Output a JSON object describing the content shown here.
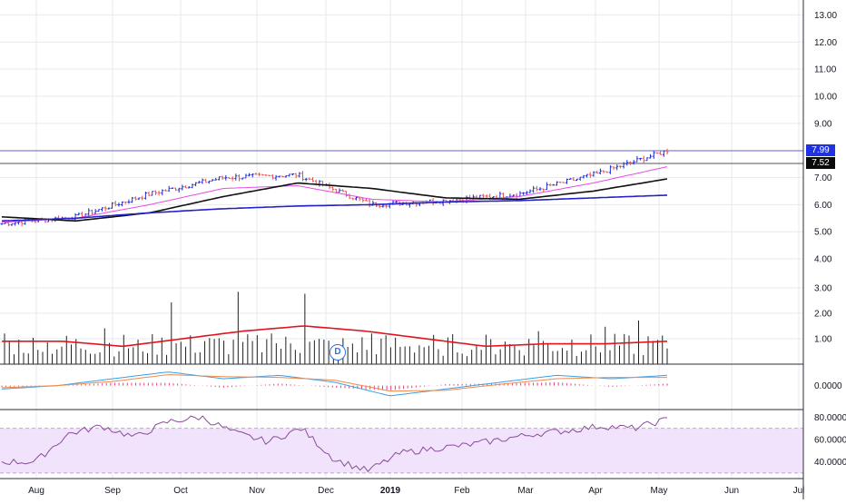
{
  "colors": {
    "background": "#ffffff",
    "grid": "#e6e9ee",
    "axis": "#131722",
    "bar_up": "#1e2bd6",
    "bar_down": "#e25555",
    "ma_fast": "#e64ce6",
    "ma_mid": "#111111",
    "ma_slow": "#2222c8",
    "volume_bar": "#1f1f1f",
    "volume_ma": "#e0141e",
    "macd_line": "#3aa0e6",
    "signal_line": "#f08a4b",
    "macd_hist": "#e8407a",
    "rsi_line": "#8b4b9b",
    "rsi_band": "#f0e3fb",
    "hline_upper": "#6b6bd6",
    "hline_lower": "#555555",
    "last_price_bg": "#1f31e0",
    "level_bg": "#0b0b0b"
  },
  "price_axis": {
    "ticks": [
      "13.00",
      "12.00",
      "11.00",
      "10.00",
      "9.00",
      "8.00",
      "7.00",
      "6.00",
      "5.00",
      "4.00"
    ]
  },
  "volume_axis": {
    "ticks": [
      "3.00",
      "2.00",
      "1.00"
    ]
  },
  "macd_axis": {
    "ticks": [
      "0.0000"
    ]
  },
  "rsi_axis": {
    "ticks": [
      "80.0000",
      "60.0000",
      "40.0000"
    ]
  },
  "time_axis": {
    "labels": [
      "Aug",
      "Sep",
      "Oct",
      "Nov",
      "Dec",
      "2019",
      "Feb",
      "Mar",
      "Apr",
      "May",
      "Jun",
      "Jul"
    ],
    "bold_label": "2019"
  },
  "badges": {
    "last_price": "7.99",
    "level": "7.52",
    "dividend_marker": "D"
  },
  "chart_data": {
    "type": "line",
    "title": "",
    "x": [
      "Aug",
      "Sep",
      "Oct",
      "Nov",
      "Dec",
      "2019",
      "Feb",
      "Mar",
      "Apr",
      "May"
    ],
    "price_range": [
      4,
      13.5
    ],
    "horizontal_levels": [
      7.99,
      7.52
    ],
    "series": [
      {
        "values": [
          5.3,
          5.55,
          6.4,
          7.0,
          7.1,
          6.0,
          6.15,
          6.4,
          7.1,
          7.99
        ]
      },
      {
        "values": [
          5.35,
          5.5,
          6.0,
          6.6,
          6.7,
          6.2,
          6.1,
          6.3,
          6.8,
          7.4
        ]
      },
      {
        "values": [
          5.55,
          5.4,
          5.7,
          6.3,
          6.8,
          6.6,
          6.25,
          6.2,
          6.5,
          6.95
        ]
      },
      {
        "values": [
          5.4,
          5.5,
          5.7,
          5.85,
          5.95,
          6.0,
          6.1,
          6.15,
          6.25,
          6.35
        ]
      }
    ],
    "volume": {
      "range": [
        0,
        3.6
      ],
      "values": [
        1.4,
        0.8,
        0.9,
        1.8,
        1.0,
        3.3,
        1.1,
        2.9,
        1.5,
        3.5,
        0.7,
        1.4,
        0.9,
        0.6,
        0.8,
        1.0,
        1.5,
        1.3,
        1.6,
        1.9
      ],
      "ma_values": [
        0.9,
        0.9,
        0.7,
        1.0,
        1.3,
        1.5,
        1.3,
        1.0,
        0.7,
        0.8,
        0.8,
        0.9
      ]
    },
    "macd": {
      "zero_value": 0.0,
      "line": [
        -0.05,
        0.0,
        0.1,
        0.2,
        0.1,
        0.15,
        0.05,
        -0.15,
        -0.05,
        0.05,
        0.15,
        0.1,
        0.15
      ],
      "signal": [
        -0.03,
        0.0,
        0.06,
        0.16,
        0.13,
        0.12,
        0.08,
        -0.08,
        -0.07,
        0.02,
        0.1,
        0.12,
        0.12
      ],
      "histogram": [
        -0.02,
        0.0,
        0.04,
        0.04,
        -0.03,
        0.03,
        -0.03,
        -0.07,
        0.02,
        0.03,
        0.05,
        -0.02,
        0.03
      ]
    },
    "rsi": {
      "range": [
        30,
        85
      ],
      "band": [
        30,
        70
      ],
      "values": [
        40,
        40,
        65,
        72,
        62,
        76,
        80,
        66,
        58,
        70,
        42,
        32,
        48,
        52,
        55,
        60,
        65,
        68,
        72,
        70,
        78
      ]
    }
  }
}
